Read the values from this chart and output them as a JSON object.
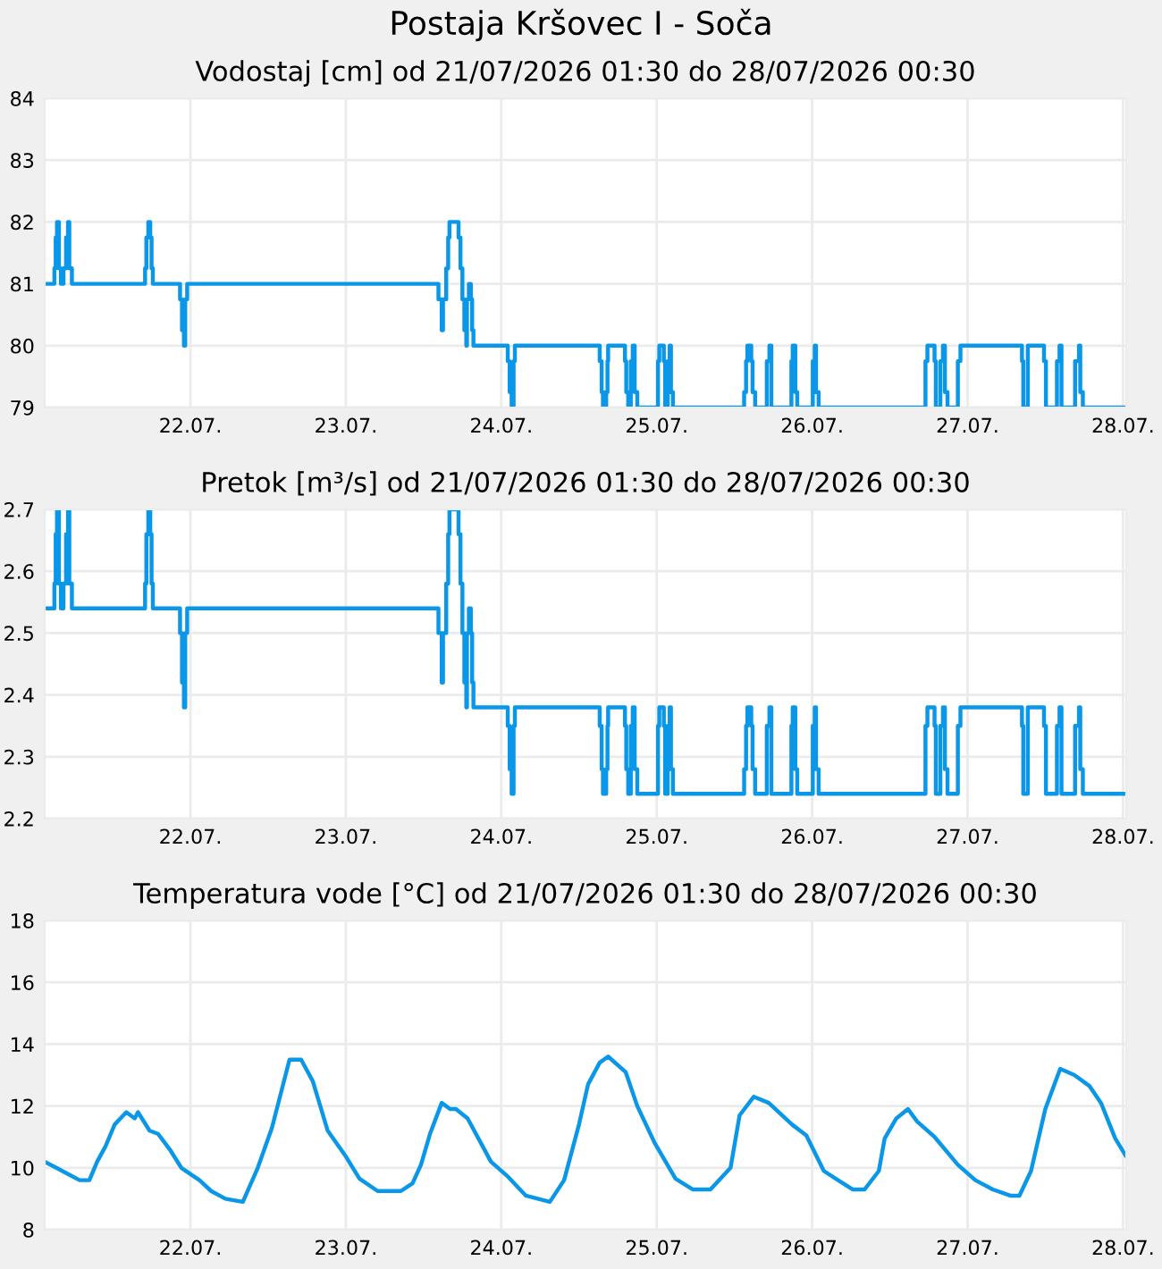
{
  "chart_data": [
    {
      "type": "step",
      "title": "Postaja Kršovec I - Soča",
      "subtitle": "Vodostaj [cm] od 21/07/2026 01:30 do 28/07/2026 00:30",
      "x": [
        "2026-07-21T01:30",
        "2026-07-21T03:00",
        "2026-07-21T03:12",
        "2026-07-21T03:24",
        "2026-07-21T03:42",
        "2026-07-21T04:00",
        "2026-07-21T04:24",
        "2026-07-21T04:48",
        "2026-07-21T05:06",
        "2026-07-21T05:18",
        "2026-07-21T05:42",
        "2026-07-21T17:00",
        "2026-07-21T17:12",
        "2026-07-21T17:30",
        "2026-07-21T17:48",
        "2026-07-21T18:00",
        "2026-07-21T18:12",
        "2026-07-21T22:24",
        "2026-07-21T22:42",
        "2026-07-21T23:00",
        "2026-07-21T23:12",
        "2026-07-21T23:30",
        "2026-07-23T14:18",
        "2026-07-23T14:48",
        "2026-07-23T15:00",
        "2026-07-23T15:30",
        "2026-07-23T15:48",
        "2026-07-23T16:00",
        "2026-07-23T17:24",
        "2026-07-23T17:42",
        "2026-07-23T18:00",
        "2026-07-23T18:18",
        "2026-07-23T18:36",
        "2026-07-23T18:42",
        "2026-07-23T19:00",
        "2026-07-23T19:18",
        "2026-07-23T19:30",
        "2026-07-23T19:42",
        "2026-07-24T01:00",
        "2026-07-24T01:18",
        "2026-07-24T01:36",
        "2026-07-24T01:54",
        "2026-07-24T02:06",
        "2026-07-24T15:12",
        "2026-07-24T15:30",
        "2026-07-24T15:42",
        "2026-07-24T16:12",
        "2026-07-24T16:24",
        "2026-07-24T16:30",
        "2026-07-24T19:06",
        "2026-07-24T19:18",
        "2026-07-24T19:36",
        "2026-07-24T20:00",
        "2026-07-24T20:18",
        "2026-07-24T20:36",
        "2026-07-24T21:00",
        "2026-07-25T00:12",
        "2026-07-25T00:24",
        "2026-07-25T01:06",
        "2026-07-25T01:18",
        "2026-07-25T01:42",
        "2026-07-25T02:00",
        "2026-07-25T02:12",
        "2026-07-25T02:30",
        "2026-07-25T13:30",
        "2026-07-25T13:48",
        "2026-07-25T14:00",
        "2026-07-25T14:36",
        "2026-07-25T14:48",
        "2026-07-25T15:12",
        "2026-07-25T17:00",
        "2026-07-25T17:24",
        "2026-07-25T17:42",
        "2026-07-25T20:48",
        "2026-07-25T21:00",
        "2026-07-25T21:24",
        "2026-07-25T21:42",
        "2026-07-26T00:06",
        "2026-07-26T00:24",
        "2026-07-26T00:36",
        "2026-07-26T01:00",
        "2026-07-26T17:30",
        "2026-07-26T17:48",
        "2026-07-26T18:54",
        "2026-07-26T19:06",
        "2026-07-26T19:48",
        "2026-07-26T20:12",
        "2026-07-26T20:30",
        "2026-07-26T20:54",
        "2026-07-26T22:30",
        "2026-07-26T22:54",
        "2026-07-27T08:24",
        "2026-07-27T08:36",
        "2026-07-27T09:18",
        "2026-07-27T11:48",
        "2026-07-27T12:06",
        "2026-07-27T13:48",
        "2026-07-27T14:12",
        "2026-07-27T14:30",
        "2026-07-27T16:36",
        "2026-07-27T17:12",
        "2026-07-27T17:24",
        "2026-07-27T17:48",
        "2026-07-28T00:24"
      ],
      "series": [
        {
          "color": "#0a97e8",
          "values": [
            81,
            81.25,
            81.75,
            82,
            81.25,
            81,
            81.25,
            81.75,
            82,
            81.25,
            81,
            81.25,
            81.75,
            82,
            81.75,
            81.25,
            81,
            80.75,
            80.25,
            80,
            80.75,
            81,
            80.75,
            80.25,
            80.75,
            81.25,
            81.75,
            82,
            81.75,
            81.25,
            80.75,
            80.25,
            80,
            80.75,
            81,
            80.75,
            80.25,
            80,
            79.75,
            79.25,
            79,
            79.75,
            80,
            79.75,
            79.25,
            79,
            79.25,
            79.75,
            80,
            79.75,
            79.25,
            79,
            79.75,
            80,
            79.25,
            79,
            79.75,
            80,
            79.75,
            79,
            79.75,
            80,
            79.25,
            79,
            79.25,
            79.75,
            80,
            79.75,
            79.25,
            79,
            79.75,
            80,
            79,
            79.75,
            80,
            79.25,
            79,
            79.75,
            80,
            79.25,
            79,
            79.75,
            80,
            79.75,
            79,
            79.75,
            80,
            79.25,
            79,
            79.75,
            80,
            79.75,
            79,
            80,
            79.75,
            79,
            79.75,
            80,
            79,
            79.75,
            80,
            79.25,
            79,
            79
          ]
        }
      ],
      "xlim": [
        "2026-07-21T01:30",
        "2026-07-28T00:30"
      ],
      "xticks": [
        {
          "value": "2026-07-22",
          "label": "22.07."
        },
        {
          "value": "2026-07-23",
          "label": "23.07."
        },
        {
          "value": "2026-07-24",
          "label": "24.07."
        },
        {
          "value": "2026-07-25",
          "label": "25.07."
        },
        {
          "value": "2026-07-26",
          "label": "26.07."
        },
        {
          "value": "2026-07-27",
          "label": "27.07."
        },
        {
          "value": "2026-07-28",
          "label": "28.07."
        }
      ],
      "ylim": [
        79,
        84
      ],
      "yticks": [
        79,
        80,
        81,
        82,
        83,
        84
      ],
      "grid": true
    },
    {
      "type": "step",
      "title": "Pretok [m³/s] od 21/07/2026 01:30 do 28/07/2026 00:30",
      "x": [
        "2026-07-21T01:30",
        "2026-07-21T03:00",
        "2026-07-21T03:12",
        "2026-07-21T03:24",
        "2026-07-21T03:42",
        "2026-07-21T04:00",
        "2026-07-21T04:24",
        "2026-07-21T04:48",
        "2026-07-21T05:06",
        "2026-07-21T05:18",
        "2026-07-21T05:42",
        "2026-07-21T17:00",
        "2026-07-21T17:12",
        "2026-07-21T17:30",
        "2026-07-21T17:48",
        "2026-07-21T18:00",
        "2026-07-21T18:12",
        "2026-07-21T22:24",
        "2026-07-21T22:42",
        "2026-07-21T23:00",
        "2026-07-21T23:12",
        "2026-07-21T23:30",
        "2026-07-23T14:18",
        "2026-07-23T14:48",
        "2026-07-23T15:00",
        "2026-07-23T15:30",
        "2026-07-23T15:48",
        "2026-07-23T16:00",
        "2026-07-23T17:24",
        "2026-07-23T17:42",
        "2026-07-23T18:00",
        "2026-07-23T18:18",
        "2026-07-23T18:36",
        "2026-07-23T18:42",
        "2026-07-23T19:00",
        "2026-07-23T19:18",
        "2026-07-23T19:30",
        "2026-07-23T19:42",
        "2026-07-24T01:00",
        "2026-07-24T01:18",
        "2026-07-24T01:36",
        "2026-07-24T01:54",
        "2026-07-24T02:06",
        "2026-07-24T15:12",
        "2026-07-24T15:30",
        "2026-07-24T15:42",
        "2026-07-24T16:12",
        "2026-07-24T16:24",
        "2026-07-24T16:30",
        "2026-07-24T19:06",
        "2026-07-24T19:18",
        "2026-07-24T19:36",
        "2026-07-24T20:00",
        "2026-07-24T20:18",
        "2026-07-24T20:36",
        "2026-07-24T21:00",
        "2026-07-25T00:12",
        "2026-07-25T00:24",
        "2026-07-25T01:06",
        "2026-07-25T01:18",
        "2026-07-25T01:42",
        "2026-07-25T02:00",
        "2026-07-25T02:12",
        "2026-07-25T02:30",
        "2026-07-25T13:30",
        "2026-07-25T13:48",
        "2026-07-25T14:00",
        "2026-07-25T14:36",
        "2026-07-25T14:48",
        "2026-07-25T15:12",
        "2026-07-25T17:00",
        "2026-07-25T17:24",
        "2026-07-25T17:42",
        "2026-07-25T20:48",
        "2026-07-25T21:00",
        "2026-07-25T21:24",
        "2026-07-25T21:42",
        "2026-07-26T00:06",
        "2026-07-26T00:24",
        "2026-07-26T00:36",
        "2026-07-26T01:00",
        "2026-07-26T17:30",
        "2026-07-26T17:48",
        "2026-07-26T18:54",
        "2026-07-26T19:06",
        "2026-07-26T19:48",
        "2026-07-26T20:12",
        "2026-07-26T20:30",
        "2026-07-26T20:54",
        "2026-07-26T22:30",
        "2026-07-26T22:54",
        "2026-07-27T08:24",
        "2026-07-27T08:36",
        "2026-07-27T09:18",
        "2026-07-27T11:48",
        "2026-07-27T12:06",
        "2026-07-27T13:48",
        "2026-07-27T14:12",
        "2026-07-27T14:30",
        "2026-07-27T16:36",
        "2026-07-27T17:12",
        "2026-07-27T17:24",
        "2026-07-27T17:48",
        "2026-07-28T00:24"
      ],
      "series": [
        {
          "color": "#0a97e8",
          "values": [
            2.54,
            2.58,
            2.66,
            2.7,
            2.58,
            2.54,
            2.58,
            2.66,
            2.7,
            2.58,
            2.54,
            2.58,
            2.66,
            2.7,
            2.66,
            2.58,
            2.54,
            2.5,
            2.42,
            2.38,
            2.5,
            2.54,
            2.5,
            2.42,
            2.5,
            2.58,
            2.66,
            2.7,
            2.66,
            2.58,
            2.5,
            2.42,
            2.38,
            2.5,
            2.54,
            2.5,
            2.42,
            2.38,
            2.35,
            2.28,
            2.24,
            2.35,
            2.38,
            2.35,
            2.28,
            2.24,
            2.28,
            2.35,
            2.38,
            2.35,
            2.28,
            2.24,
            2.35,
            2.38,
            2.28,
            2.24,
            2.35,
            2.38,
            2.35,
            2.24,
            2.35,
            2.38,
            2.28,
            2.24,
            2.28,
            2.35,
            2.38,
            2.35,
            2.28,
            2.24,
            2.35,
            2.38,
            2.24,
            2.35,
            2.38,
            2.28,
            2.24,
            2.35,
            2.38,
            2.28,
            2.24,
            2.35,
            2.38,
            2.35,
            2.24,
            2.35,
            2.38,
            2.28,
            2.24,
            2.35,
            2.38,
            2.35,
            2.24,
            2.38,
            2.35,
            2.24,
            2.35,
            2.38,
            2.24,
            2.35,
            2.38,
            2.28,
            2.24,
            2.24
          ]
        }
      ],
      "xlim": [
        "2026-07-21T01:30",
        "2026-07-28T00:30"
      ],
      "xticks": [
        {
          "value": "2026-07-22",
          "label": "22.07."
        },
        {
          "value": "2026-07-23",
          "label": "23.07."
        },
        {
          "value": "2026-07-24",
          "label": "24.07."
        },
        {
          "value": "2026-07-25",
          "label": "25.07."
        },
        {
          "value": "2026-07-26",
          "label": "26.07."
        },
        {
          "value": "2026-07-27",
          "label": "27.07."
        },
        {
          "value": "2026-07-28",
          "label": "28.07."
        }
      ],
      "ylim": [
        2.2,
        2.7
      ],
      "yticks": [
        2.2,
        2.3,
        2.4,
        2.5,
        2.6,
        2.7
      ],
      "grid": true
    },
    {
      "type": "line",
      "title": "Temperatura vode [°C] od 21/07/2026 01:30 do 28/07/2026 00:30",
      "x": [
        "2026-07-21T01:30",
        "2026-07-21T03:18",
        "2026-07-21T05:06",
        "2026-07-21T06:54",
        "2026-07-21T08:24",
        "2026-07-21T09:36",
        "2026-07-21T10:54",
        "2026-07-21T12:18",
        "2026-07-21T14:06",
        "2026-07-21T15:24",
        "2026-07-21T15:54",
        "2026-07-21T17:42",
        "2026-07-21T19:00",
        "2026-07-21T20:48",
        "2026-07-21T22:36",
        "2026-07-22T01:24",
        "2026-07-22T03:12",
        "2026-07-22T05:24",
        "2026-07-22T08:06",
        "2026-07-22T10:24",
        "2026-07-22T12:36",
        "2026-07-22T15:18",
        "2026-07-22T17:06",
        "2026-07-22T18:54",
        "2026-07-22T21:12",
        "2026-07-22T23:54",
        "2026-07-23T02:06",
        "2026-07-23T04:54",
        "2026-07-23T08:30",
        "2026-07-23T10:18",
        "2026-07-23T11:36",
        "2026-07-23T13:00",
        "2026-07-23T14:48",
        "2026-07-23T16:06",
        "2026-07-23T17:00",
        "2026-07-23T18:48",
        "2026-07-23T20:36",
        "2026-07-23T22:24",
        "2026-07-24T01:06",
        "2026-07-24T03:48",
        "2026-07-24T07:30",
        "2026-07-24T09:42",
        "2026-07-24T12:00",
        "2026-07-24T13:24",
        "2026-07-24T15:12",
        "2026-07-24T16:30",
        "2026-07-24T19:12",
        "2026-07-24T21:00",
        "2026-07-24T23:42",
        "2026-07-25T02:54",
        "2026-07-25T05:36",
        "2026-07-25T08:18",
        "2026-07-25T11:24",
        "2026-07-25T12:48",
        "2026-07-25T15:00",
        "2026-07-25T17:18",
        "2026-07-25T20:54",
        "2026-07-25T23:06",
        "2026-07-26T01:48",
        "2026-07-26T04:00",
        "2026-07-26T06:18",
        "2026-07-26T08:06",
        "2026-07-26T10:18",
        "2026-07-26T11:12",
        "2026-07-26T13:00",
        "2026-07-26T14:48",
        "2026-07-26T16:12",
        "2026-07-26T18:54",
        "2026-07-26T22:30",
        "2026-07-27T01:12",
        "2026-07-27T03:54",
        "2026-07-27T06:36",
        "2026-07-27T08:00",
        "2026-07-27T09:48",
        "2026-07-27T12:00",
        "2026-07-27T14:18",
        "2026-07-27T16:30",
        "2026-07-27T18:48",
        "2026-07-27T20:36",
        "2026-07-27T22:48",
        "2026-07-28T00:24"
      ],
      "series": [
        {
          "color": "#0a97e8",
          "values": [
            10.2,
            10.0,
            9.8,
            9.6,
            9.6,
            10.2,
            10.7,
            11.4,
            11.8,
            11.6,
            11.8,
            11.2,
            11.1,
            10.6,
            10.0,
            9.6,
            9.25,
            9.0,
            8.9,
            10.0,
            11.3,
            13.5,
            13.5,
            12.8,
            11.2,
            10.4,
            9.65,
            9.25,
            9.25,
            9.5,
            10.1,
            11.1,
            12.1,
            11.9,
            11.9,
            11.6,
            10.9,
            10.2,
            9.7,
            9.1,
            8.9,
            9.6,
            11.4,
            12.7,
            13.4,
            13.6,
            13.1,
            12.0,
            10.8,
            9.65,
            9.3,
            9.3,
            10.0,
            11.7,
            12.3,
            12.1,
            11.4,
            11.05,
            9.9,
            9.6,
            9.3,
            9.3,
            9.9,
            10.95,
            11.6,
            11.9,
            11.5,
            11.0,
            10.1,
            9.6,
            9.3,
            9.1,
            9.1,
            9.9,
            11.9,
            13.2,
            13.0,
            12.65,
            12.1,
            10.95,
            10.4
          ]
        }
      ],
      "xlim": [
        "2026-07-21T01:30",
        "2026-07-28T00:30"
      ],
      "xticks": [
        {
          "value": "2026-07-22",
          "label": "22.07."
        },
        {
          "value": "2026-07-23",
          "label": "23.07."
        },
        {
          "value": "2026-07-24",
          "label": "24.07."
        },
        {
          "value": "2026-07-25",
          "label": "25.07."
        },
        {
          "value": "2026-07-26",
          "label": "26.07."
        },
        {
          "value": "2026-07-27",
          "label": "27.07."
        },
        {
          "value": "2026-07-28",
          "label": "28.07."
        }
      ],
      "ylim": [
        8,
        18
      ],
      "yticks": [
        8,
        10,
        12,
        14,
        16,
        18
      ],
      "grid": true
    }
  ]
}
